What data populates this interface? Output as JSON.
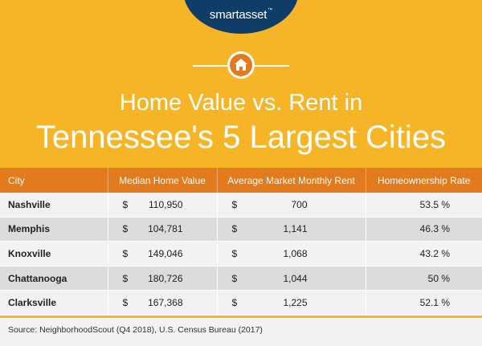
{
  "brand": {
    "name": "smartasset",
    "mark": "™"
  },
  "title": {
    "line1": "Home Value vs. Rent in",
    "line2": "Tennessee's 5 Largest Cities"
  },
  "icon": "home-icon",
  "colors": {
    "background": "#f6b527",
    "header": "#e27b1d",
    "logo": "#0f3d68"
  },
  "table": {
    "headers": [
      "City",
      "Median Home Value",
      "Average Market Monthly Rent",
      "Homeownership Rate"
    ],
    "rows": [
      {
        "city": "Nashville",
        "home_sym": "$",
        "home": "110,950",
        "rent_sym": "$",
        "rent": "700",
        "rate": "53.5 %"
      },
      {
        "city": "Memphis",
        "home_sym": "$",
        "home": "104,781",
        "rent_sym": "$",
        "rent": "1,141",
        "rate": "46.3 %"
      },
      {
        "city": "Knoxville",
        "home_sym": "$",
        "home": "149,046",
        "rent_sym": "$",
        "rent": "1,068",
        "rate": "43.2 %"
      },
      {
        "city": "Chattanooga",
        "home_sym": "$",
        "home": "180,726",
        "rent_sym": "$",
        "rent": "1,044",
        "rate": "50 %"
      },
      {
        "city": "Clarksville",
        "home_sym": "$",
        "home": "167,368",
        "rent_sym": "$",
        "rent": "1,225",
        "rate": "52.1 %"
      }
    ]
  },
  "source": "Source: NeighborhoodScout (Q4 2018), U.S. Census Bureau (2017)"
}
